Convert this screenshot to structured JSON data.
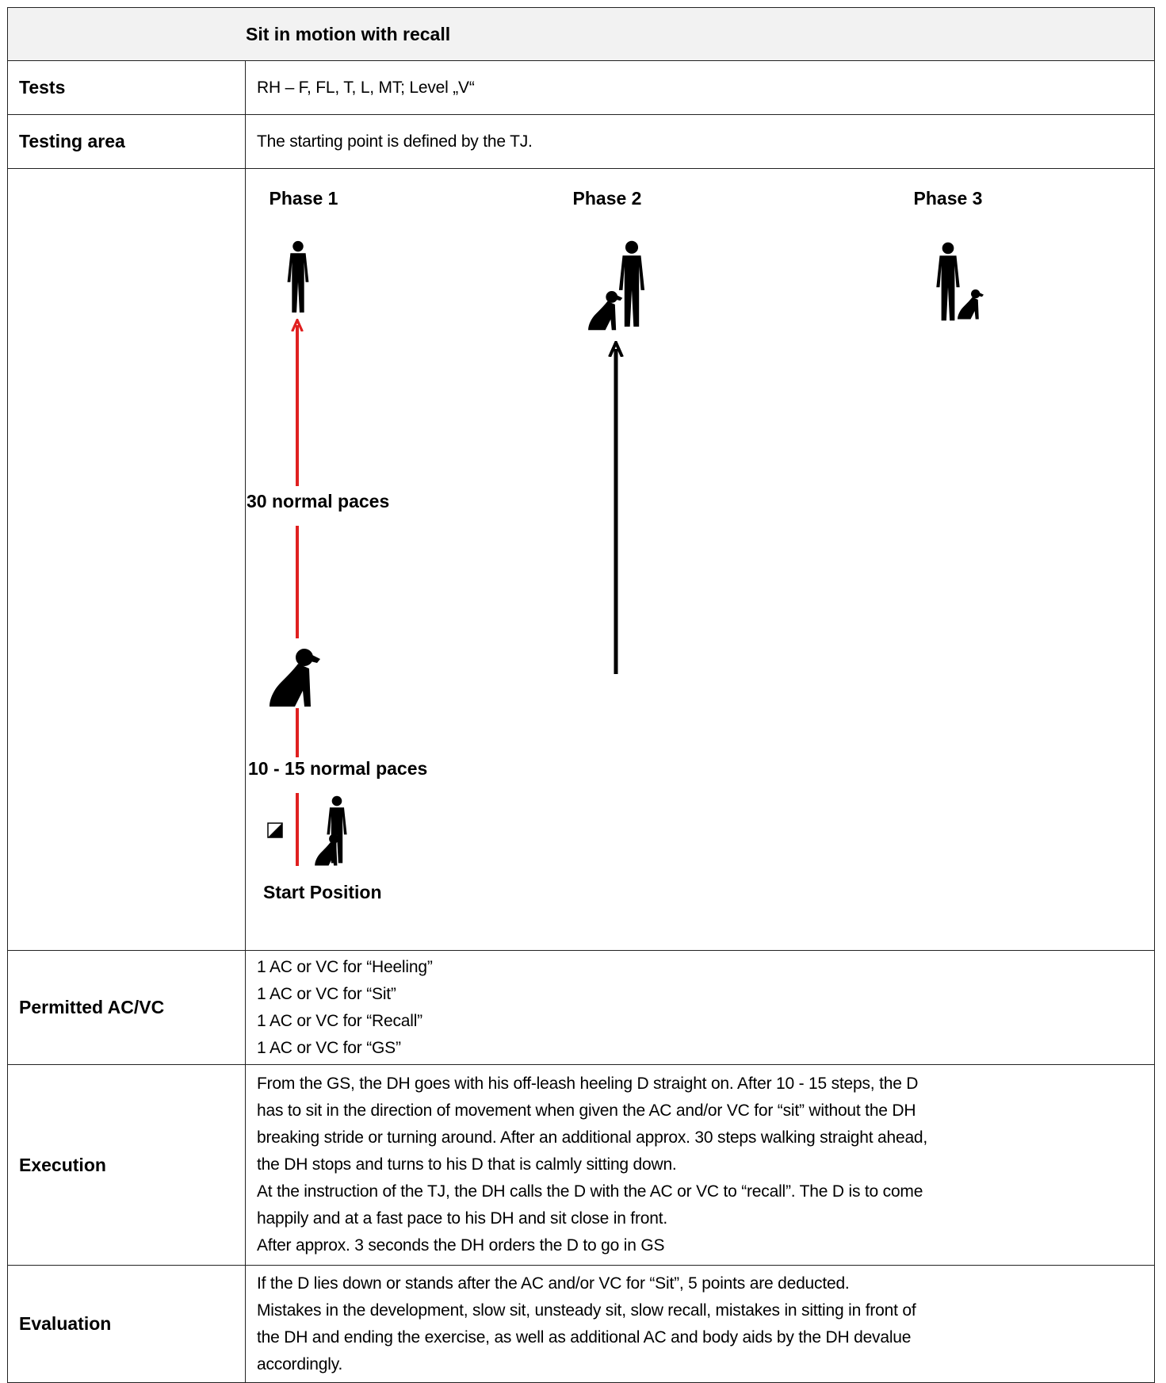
{
  "header": {
    "title": "Sit in motion with recall"
  },
  "tests": {
    "label": "Tests",
    "text": "RH – F, FL, T, L, MT; Level „V“"
  },
  "testing_area": {
    "label": "Testing area",
    "text": "The starting point is defined by the TJ."
  },
  "diagram": {
    "phases": [
      "Phase 1",
      "Phase 2",
      "Phase 3"
    ],
    "long_distance": "30 normal paces",
    "short_distance": "10 - 15 normal paces",
    "start": "Start Position"
  },
  "permitted": {
    "label": "Permitted AC/VC",
    "lines": [
      "1 AC or VC for “Heeling”",
      "1 AC or VC for “Sit”",
      "1 AC or VC for “Recall”",
      "1 AC or VC for “GS”"
    ]
  },
  "execution": {
    "label": "Execution",
    "lines": [
      "From the GS, the DH goes with his off-leash heeling D straight on. After 10 - 15 steps, the D",
      "has to sit in the direction of movement when given the AC and/or VC for “sit” without the DH",
      "breaking stride or turning around. After an additional approx. 30 steps walking straight ahead,",
      "the DH stops and turns to his D that is calmly sitting down.",
      "At the instruction of the TJ, the DH calls the D with the AC or VC to “recall”. The D is to come",
      "happily and at a fast pace to his DH and sit close in front.",
      "After approx. 3 seconds the DH orders the D to go in GS"
    ]
  },
  "evaluation": {
    "label": "Evaluation",
    "lines": [
      "If the D lies down or stands after the AC and/or VC for “Sit”, 5 points are deducted.",
      "Mistakes in the development, slow sit, unsteady sit, slow recall, mistakes in sitting in front of",
      "the DH and ending the exercise, as well as additional AC and body aids by the DH devalue",
      "accordingly."
    ]
  }
}
